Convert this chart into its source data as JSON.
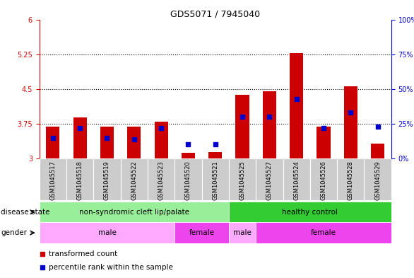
{
  "title": "GDS5071 / 7945040",
  "samples": [
    "GSM1045517",
    "GSM1045518",
    "GSM1045519",
    "GSM1045522",
    "GSM1045523",
    "GSM1045520",
    "GSM1045521",
    "GSM1045525",
    "GSM1045527",
    "GSM1045524",
    "GSM1045526",
    "GSM1045528",
    "GSM1045529"
  ],
  "transformed_count": [
    3.68,
    3.88,
    3.68,
    3.68,
    3.8,
    3.12,
    3.14,
    4.38,
    4.45,
    5.27,
    3.68,
    4.55,
    3.32
  ],
  "percentile_rank": [
    15,
    22,
    15,
    14,
    22,
    10,
    10,
    30,
    30,
    43,
    22,
    33,
    23
  ],
  "ylim_left": [
    3.0,
    6.0
  ],
  "yticks_left": [
    3.0,
    3.75,
    4.5,
    5.25,
    6.0
  ],
  "ytick_labels_left": [
    "3",
    "3.75",
    "4.5",
    "5.25",
    "6"
  ],
  "ytick_labels_right": [
    "0%",
    "25%",
    "50%",
    "75%",
    "100%"
  ],
  "hlines": [
    3.75,
    4.5,
    5.25
  ],
  "bar_color": "#cc0000",
  "dot_color": "#0000cc",
  "bar_width": 0.5,
  "dot_size": 22,
  "baseline": 3.0,
  "disease_state_groups": [
    {
      "label": "non-syndromic cleft lip/palate",
      "start": 0,
      "end": 6,
      "color": "#99ee99"
    },
    {
      "label": "healthy control",
      "start": 7,
      "end": 12,
      "color": "#33cc33"
    }
  ],
  "gender_groups": [
    {
      "label": "male",
      "start": 0,
      "end": 4,
      "color": "#ffaaff"
    },
    {
      "label": "female",
      "start": 5,
      "end": 6,
      "color": "#ee44ee"
    },
    {
      "label": "male",
      "start": 7,
      "end": 7,
      "color": "#ffaaff"
    },
    {
      "label": "female",
      "start": 8,
      "end": 12,
      "color": "#ee44ee"
    }
  ],
  "bar_color_legend": "#cc0000",
  "dot_color_legend": "#0000cc",
  "legend_label_bar": "transformed count",
  "legend_label_dot": "percentile rank within the sample",
  "disease_state_label": "disease state",
  "gender_label": "gender",
  "title_fontsize": 9,
  "tick_fontsize": 7,
  "label_fontsize": 7.5,
  "sample_fontsize": 6,
  "gray_box_color": "#cccccc",
  "left_axis_color": "#cc0000",
  "right_axis_color": "#0000cc"
}
